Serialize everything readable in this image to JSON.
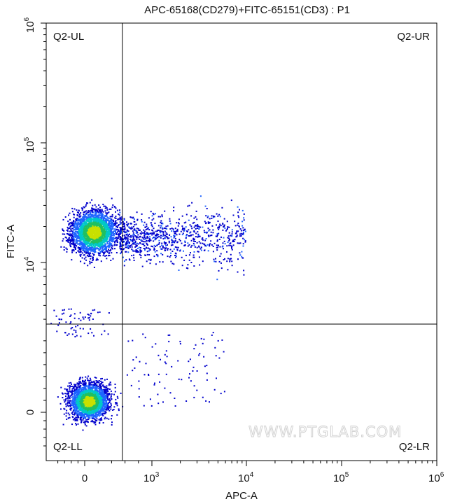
{
  "chart_data": {
    "type": "scatter",
    "title": "APC-65168(CD279)+FITC-65151(CD3) : P1",
    "xlabel": "APC-A",
    "ylabel": "FITC-A",
    "x_scale": "biexponential",
    "y_scale": "biexponential",
    "x_ticks": [
      {
        "value": 0,
        "base": "0",
        "exp": ""
      },
      {
        "value": 1000,
        "base": "10",
        "exp": "3"
      },
      {
        "value": 10000,
        "base": "10",
        "exp": "4"
      },
      {
        "value": 100000,
        "base": "10",
        "exp": "5"
      },
      {
        "value": 1000000,
        "base": "10",
        "exp": "6"
      }
    ],
    "y_ticks": [
      {
        "value": 0,
        "base": "0",
        "exp": ""
      },
      {
        "value": 10000,
        "base": "10",
        "exp": "4"
      },
      {
        "value": 100000,
        "base": "10",
        "exp": "5"
      },
      {
        "value": 1000000,
        "base": "10",
        "exp": "6"
      }
    ],
    "gate": {
      "x": 560,
      "y": 3700
    },
    "quadrants": {
      "UL": "Q2-UL",
      "UR": "Q2-UR",
      "LL": "Q2-LL",
      "LR": "Q2-LR"
    },
    "populations": [
      {
        "name": "",
        "center": [
          50,
          18000
        ],
        "spread": "high"
      },
      {
        "name": "",
        "center": [
          100,
          0
        ],
        "spread": "high"
      }
    ],
    "colormap": [
      "#0000cc",
      "#1e64ff",
      "#00c8c8",
      "#20c060",
      "#c8e000"
    ],
    "grid": false,
    "legend": "none"
  },
  "watermark": "WWW.PTGLAB.COM"
}
